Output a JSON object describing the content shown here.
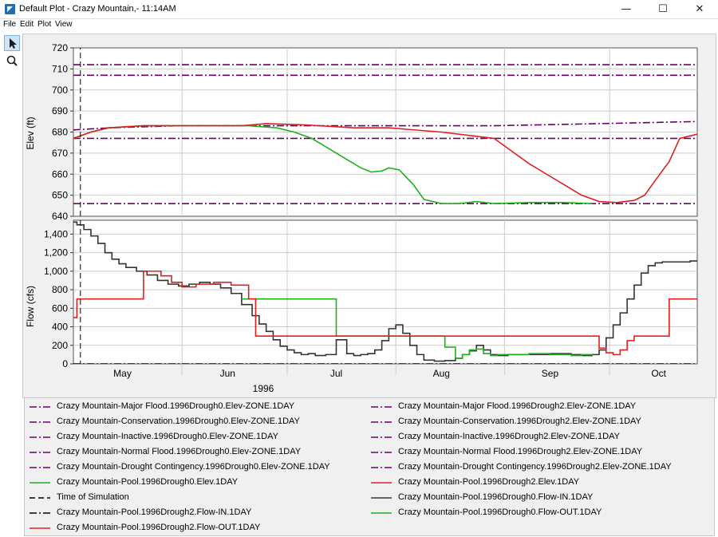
{
  "window": {
    "title": "Default Plot - Crazy Mountain,- 11:14AM",
    "minimize_glyph": "—",
    "maximize_glyph": "☐",
    "close_glyph": "✕",
    "icon": "app-logo-icon"
  },
  "menu": [
    "File",
    "Edit",
    "Plot",
    "View"
  ],
  "toolbar": [
    {
      "name": "pointer-tool",
      "icon": "cursor-arrow-icon",
      "active": true
    },
    {
      "name": "zoom-tool",
      "icon": "magnifier-icon",
      "active": false
    }
  ],
  "chart_data": [
    {
      "type": "line",
      "ylabel": "Elev (ft)",
      "ylim": [
        640,
        720
      ],
      "yticks": [
        "640",
        "650",
        "660",
        "670",
        "680",
        "690",
        "700",
        "710",
        "720"
      ],
      "xlim_days": [
        0,
        178
      ],
      "grid": true,
      "series": [
        {
          "name": "Crazy Mountain-Major Flood.1996Drough0.Elev-ZONE.1DAY",
          "color": "#6a006a",
          "dash": "dashdot",
          "x": [
            0,
            178
          ],
          "y": [
            712,
            712
          ]
        },
        {
          "name": "Crazy Mountain-Normal Flood.1996Drough0.Elev-ZONE.1DAY",
          "color": "#6a006a",
          "dash": "dashdot",
          "x": [
            0,
            178
          ],
          "y": [
            707,
            707
          ]
        },
        {
          "name": "Crazy Mountain-Conservation.1996Drough0.Elev-ZONE.1DAY",
          "color": "#6a006a",
          "dash": "dashdot",
          "x": [
            0,
            10,
            30,
            120,
            150,
            178
          ],
          "y": [
            681,
            682,
            683,
            683,
            684,
            685
          ]
        },
        {
          "name": "Crazy Mountain-Drought Contingency.1996Drough0.Elev-ZONE.1DAY",
          "color": "#6a006a",
          "dash": "dashdot",
          "x": [
            0,
            178
          ],
          "y": [
            677,
            677
          ]
        },
        {
          "name": "Crazy Mountain-Inactive.1996Drough0.Elev-ZONE.1DAY",
          "color": "#6a006a",
          "dash": "dashdot",
          "x": [
            0,
            178
          ],
          "y": [
            646,
            646
          ]
        },
        {
          "name": "Crazy Mountain-Pool.1996Drough0.Elev.1DAY",
          "color": "#1fb01f",
          "dash": "solid",
          "x": [
            0,
            5,
            10,
            20,
            50,
            58,
            63,
            68,
            72,
            77,
            82,
            85,
            88,
            90,
            93,
            97,
            100,
            105,
            110,
            115,
            120,
            130,
            140,
            148
          ],
          "y": [
            677,
            680,
            682,
            683,
            683,
            682,
            680,
            677,
            673,
            668,
            663,
            661,
            661.5,
            663,
            662,
            655,
            648,
            646,
            646,
            647,
            646,
            646.5,
            646.5,
            646
          ]
        },
        {
          "name": "Crazy Mountain-Pool.1996Drough2.Elev.1DAY",
          "color": "#e02020",
          "dash": "solid",
          "x": [
            0,
            5,
            10,
            20,
            48,
            55,
            65,
            80,
            90,
            105,
            115,
            120,
            125,
            130,
            135,
            140,
            145,
            150,
            155,
            160,
            163,
            166,
            170,
            173,
            178
          ],
          "y": [
            677,
            680,
            682,
            683,
            683,
            684,
            683.5,
            682,
            682,
            680,
            678,
            677,
            671,
            665,
            660,
            655,
            650,
            647,
            646.5,
            647.5,
            650,
            657,
            666,
            677,
            679
          ]
        },
        {
          "name": "Time of Simulation",
          "color": "#000000",
          "dash": "dash",
          "x": [
            2,
            2
          ],
          "y": [
            640,
            720
          ]
        }
      ]
    },
    {
      "type": "line",
      "ylabel": "Flow (cfs)",
      "ylim": [
        0,
        1550
      ],
      "yticks": [
        "0",
        "200",
        "400",
        "600",
        "800",
        "1,000",
        "1,200",
        "1,400"
      ],
      "xlabel": "1996",
      "xticks": [
        "May",
        "Jun",
        "Jul",
        "Aug",
        "Sep",
        "Oct"
      ],
      "xlim_days": [
        0,
        178
      ],
      "grid": true,
      "series": [
        {
          "name": "Crazy Mountain-Pool.1996Drough2.Flow-IN.1DAY",
          "color": "#000000",
          "dash": "dashdot",
          "x": [
            0,
            178
          ],
          "y": [
            0,
            0
          ]
        },
        {
          "name": "Crazy Mountain-Pool.1996Drough0.Flow-IN.1DAY",
          "color": "#333333",
          "dash": "step",
          "x": [
            0,
            1,
            3,
            5,
            7,
            9,
            11,
            13,
            15,
            18,
            21,
            24,
            27,
            30,
            33,
            36,
            39,
            42,
            45,
            48,
            51,
            53,
            55,
            57,
            59,
            61,
            63,
            65,
            67,
            69,
            72,
            75,
            78,
            80,
            82,
            84,
            86,
            88,
            90,
            92,
            94,
            96,
            98,
            100,
            103,
            106,
            109,
            111,
            113,
            115,
            117,
            119,
            121,
            124,
            130,
            136,
            142,
            145,
            148,
            150,
            152,
            154,
            156,
            158,
            160,
            162,
            164,
            166,
            168,
            170,
            172,
            174,
            176,
            178
          ],
          "y": [
            1530,
            1500,
            1450,
            1380,
            1300,
            1200,
            1130,
            1080,
            1040,
            1000,
            960,
            900,
            860,
            840,
            860,
            880,
            860,
            820,
            760,
            640,
            520,
            430,
            350,
            260,
            190,
            150,
            120,
            100,
            110,
            90,
            100,
            260,
            110,
            90,
            100,
            110,
            150,
            250,
            380,
            420,
            330,
            200,
            100,
            40,
            30,
            35,
            60,
            100,
            140,
            200,
            150,
            100,
            90,
            100,
            100,
            110,
            100,
            90,
            100,
            150,
            280,
            420,
            550,
            700,
            850,
            980,
            1060,
            1090,
            1100,
            1100,
            1100,
            1100,
            1110,
            1110
          ]
        },
        {
          "name": "Crazy Mountain-Pool.1996Drough0.Flow-OUT.1DAY",
          "color": "#1fb01f",
          "dash": "step",
          "x": [
            48,
            51,
            53,
            55,
            57,
            59,
            61,
            63,
            65,
            67,
            69,
            72,
            75,
            78,
            80,
            82,
            84,
            86,
            88,
            90,
            92,
            94,
            96,
            98,
            100,
            103,
            106,
            109,
            111,
            113,
            115,
            117,
            119,
            121,
            124,
            130,
            136,
            142,
            145,
            148
          ],
          "y": [
            700,
            700,
            700,
            700,
            700,
            700,
            700,
            700,
            700,
            700,
            700,
            700,
            300,
            300,
            300,
            300,
            300,
            300,
            300,
            300,
            300,
            300,
            300,
            300,
            300,
            300,
            180,
            60,
            100,
            150,
            160,
            110,
            90,
            100,
            100,
            110,
            100,
            90,
            100,
            90
          ]
        },
        {
          "name": "Crazy Mountain-Pool.1996Drough2.Flow-OUT.1DAY",
          "color": "#e02020",
          "dash": "step",
          "x": [
            0,
            1,
            19,
            20,
            25,
            28,
            31,
            35,
            40,
            45,
            50,
            52,
            148,
            150,
            152,
            154,
            156,
            158,
            160,
            166,
            170,
            178
          ],
          "y": [
            500,
            700,
            700,
            1000,
            950,
            880,
            830,
            860,
            880,
            850,
            700,
            300,
            300,
            170,
            120,
            100,
            150,
            250,
            300,
            300,
            700,
            700
          ]
        }
      ]
    }
  ],
  "legend": {
    "left": [
      {
        "label": "Crazy Mountain-Major Flood.1996Drough0.Elev-ZONE.1DAY",
        "color": "#6a006a",
        "dash": "dashdot"
      },
      {
        "label": "Crazy Mountain-Conservation.1996Drough0.Elev-ZONE.1DAY",
        "color": "#6a006a",
        "dash": "dashdot"
      },
      {
        "label": "Crazy Mountain-Inactive.1996Drough0.Elev-ZONE.1DAY",
        "color": "#6a006a",
        "dash": "dashdot"
      },
      {
        "label": "Crazy Mountain-Normal Flood.1996Drough0.Elev-ZONE.1DAY",
        "color": "#6a006a",
        "dash": "dashdot"
      },
      {
        "label": "Crazy Mountain-Drought Contingency.1996Drough0.Elev-ZONE.1DAY",
        "color": "#6a006a",
        "dash": "dashdot"
      },
      {
        "label": "Crazy Mountain-Pool.1996Drough0.Elev.1DAY",
        "color": "#1fb01f",
        "dash": "solid"
      },
      {
        "label": "Time of Simulation",
        "color": "#000000",
        "dash": "dash"
      },
      {
        "label": "Crazy Mountain-Pool.1996Drough2.Flow-IN.1DAY",
        "color": "#000000",
        "dash": "dashdot"
      },
      {
        "label": "Crazy Mountain-Pool.1996Drough2.Flow-OUT.1DAY",
        "color": "#e02020",
        "dash": "solid"
      }
    ],
    "right": [
      {
        "label": "Crazy Mountain-Major Flood.1996Drough2.Elev-ZONE.1DAY",
        "color": "#6a006a",
        "dash": "dashdot"
      },
      {
        "label": "Crazy Mountain-Conservation.1996Drough2.Elev-ZONE.1DAY",
        "color": "#6a006a",
        "dash": "dashdot"
      },
      {
        "label": "Crazy Mountain-Inactive.1996Drough2.Elev-ZONE.1DAY",
        "color": "#6a006a",
        "dash": "dashdot"
      },
      {
        "label": "Crazy Mountain-Normal Flood.1996Drough2.Elev-ZONE.1DAY",
        "color": "#6a006a",
        "dash": "dashdot"
      },
      {
        "label": "Crazy Mountain-Drought Contingency.1996Drough2.Elev-ZONE.1DAY",
        "color": "#6a006a",
        "dash": "dashdot"
      },
      {
        "label": "Crazy Mountain-Pool.1996Drough2.Elev.1DAY",
        "color": "#e02020",
        "dash": "solid"
      },
      {
        "label": "Crazy Mountain-Pool.1996Drough0.Flow-IN.1DAY",
        "color": "#333333",
        "dash": "solid"
      },
      {
        "label": "Crazy Mountain-Pool.1996Drough0.Flow-OUT.1DAY",
        "color": "#1fb01f",
        "dash": "solid"
      }
    ]
  }
}
